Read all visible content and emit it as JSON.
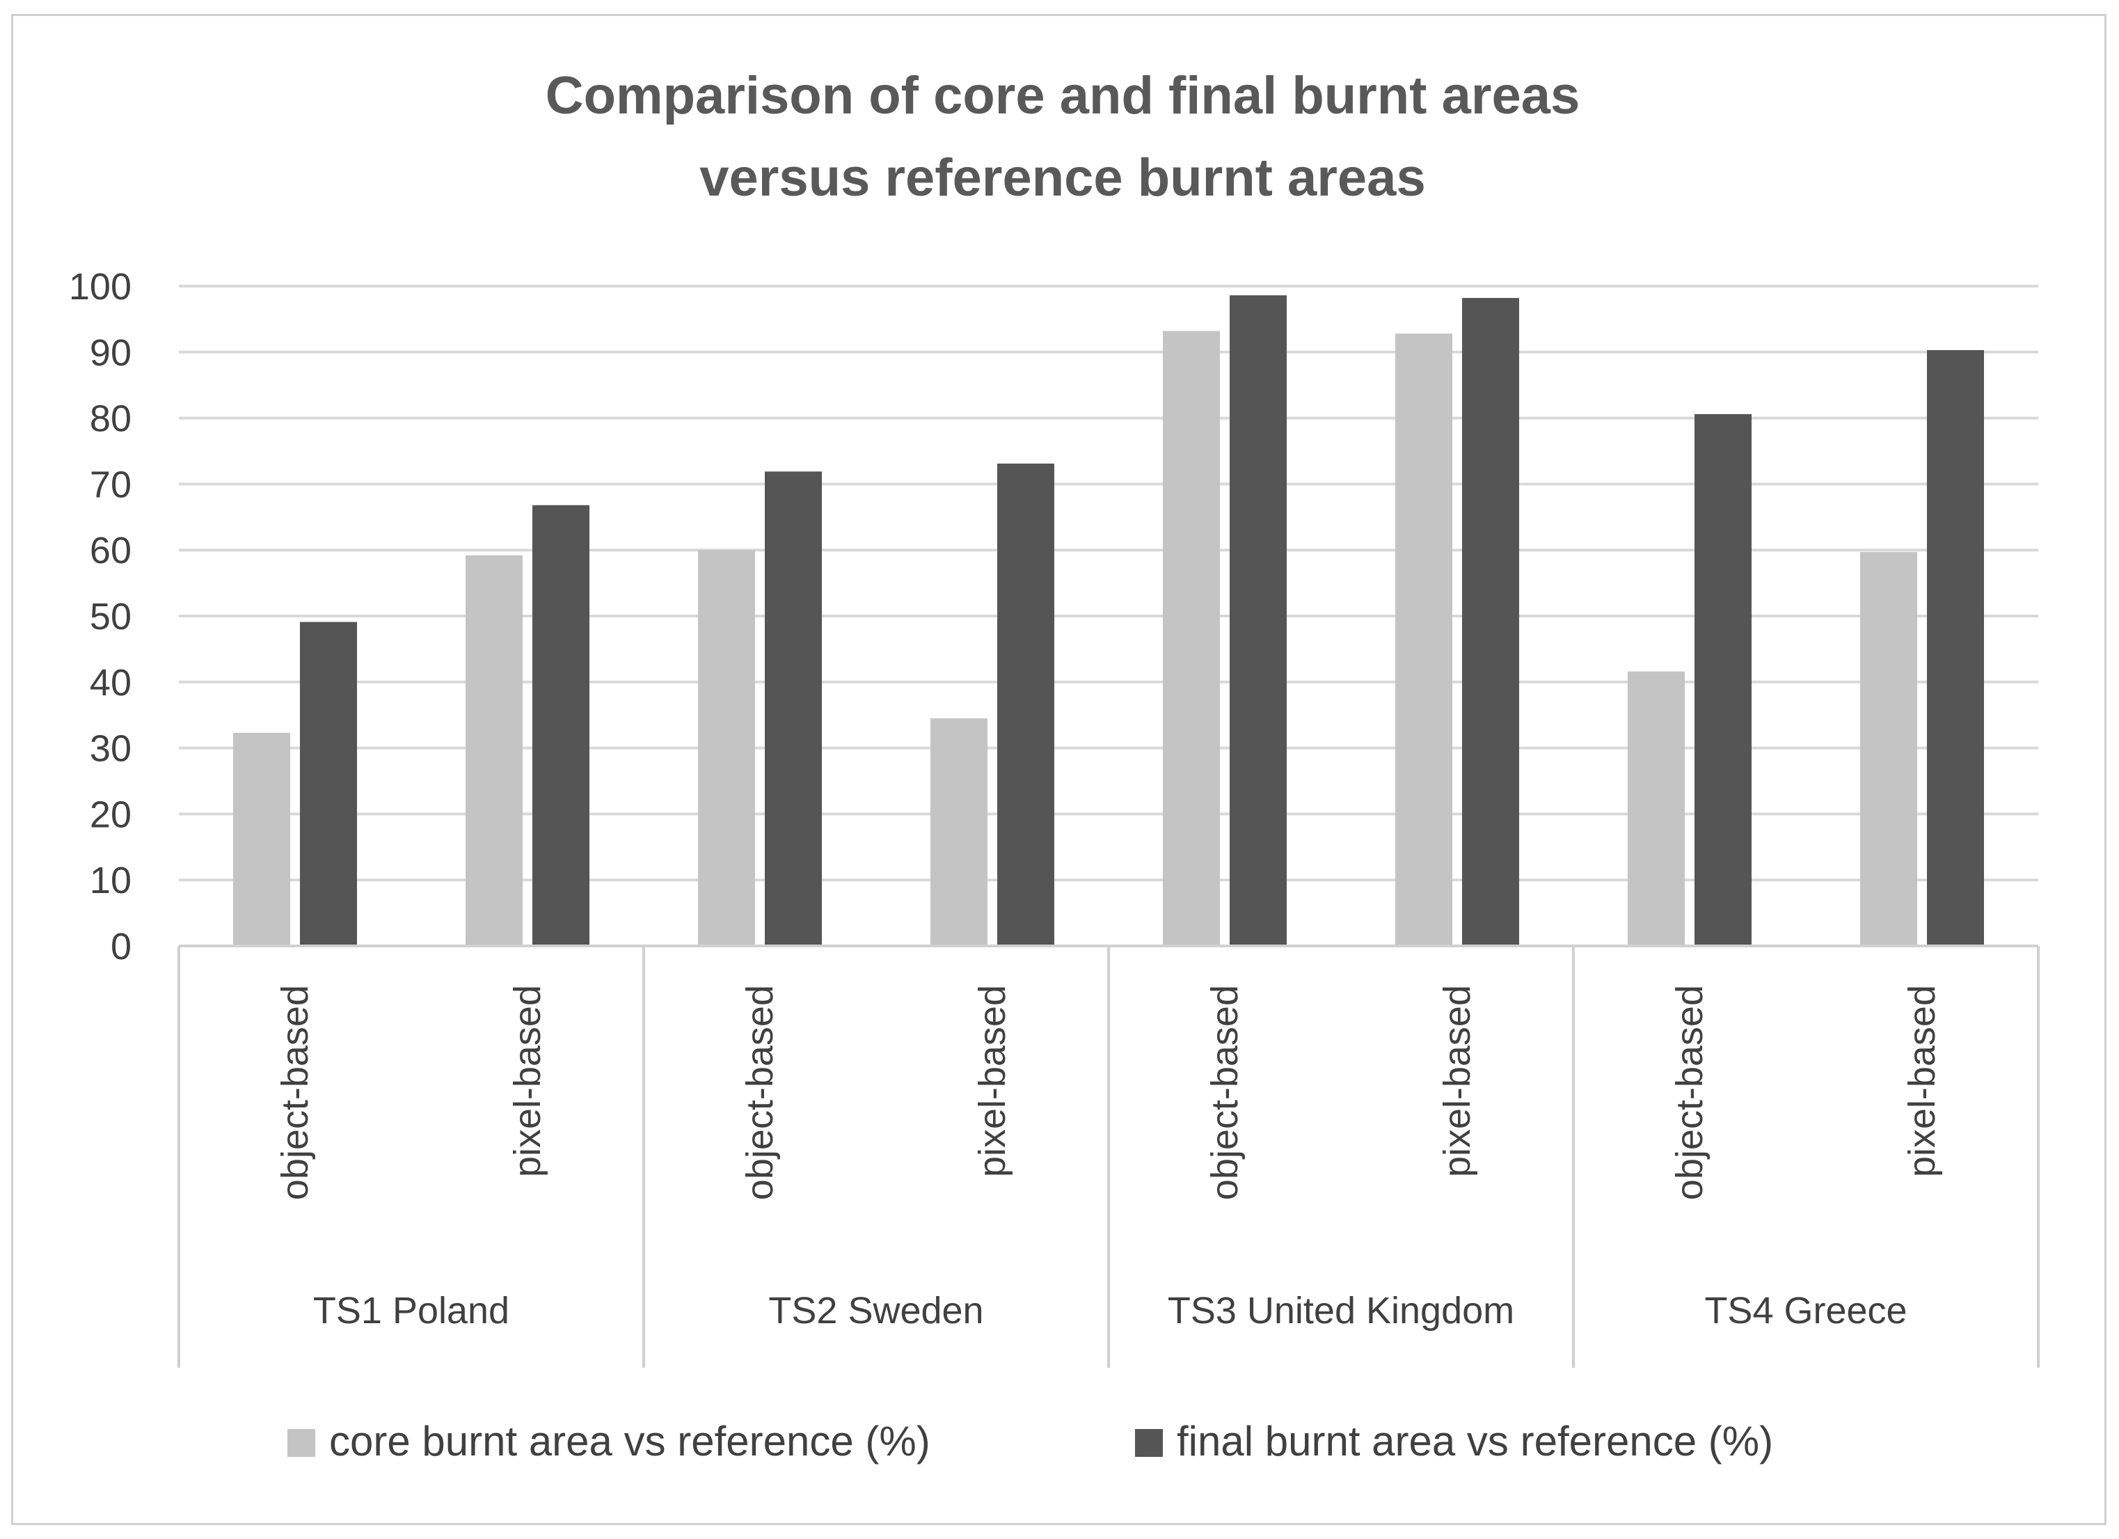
{
  "chart_data": {
    "type": "bar",
    "title": "Comparison of core and final burnt areas versus reference burnt areas",
    "title_lines": [
      "Comparison of core and final burnt areas",
      "versus reference burnt areas"
    ],
    "groups": [
      "TS1 Poland",
      "TS2 Sweden",
      "TS3 United Kingdom",
      "TS4 Greece"
    ],
    "categories": [
      "object-based",
      "pixel-based",
      "object-based",
      "pixel-based",
      "object-based",
      "pixel-based",
      "object-based",
      "pixel-based"
    ],
    "series": [
      {
        "name": "core burnt area vs reference (%)",
        "color": "#c4c4c4",
        "values": [
          32.3,
          59.2,
          60.0,
          34.5,
          93.2,
          92.8,
          41.6,
          59.7
        ]
      },
      {
        "name": "final burnt area vs reference (%)",
        "color": "#555555",
        "values": [
          49.1,
          66.8,
          71.9,
          73.1,
          98.6,
          98.2,
          80.6,
          90.3
        ]
      }
    ],
    "ylim": [
      0,
      100
    ],
    "yticks": [
      0,
      10,
      20,
      30,
      40,
      50,
      60,
      70,
      80,
      90,
      100
    ],
    "xlabel": "",
    "ylabel": "",
    "grid": true,
    "legend_position": "bottom"
  },
  "colors": {
    "gridline": "#d9d9d9",
    "axis": "#d0d0d0",
    "text": "#404040",
    "title": "#595959"
  }
}
